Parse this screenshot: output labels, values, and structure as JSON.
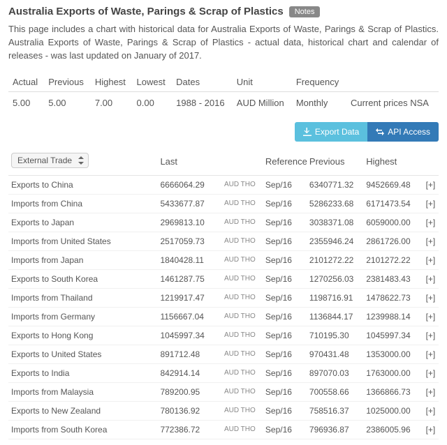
{
  "header": {
    "title": "Australia Exports of Waste, Parings & Scrap of Plastics",
    "notes_label": "Notes"
  },
  "description": "This page includes a chart with historical data for Australia Exports of Waste, Parings & Scrap of Plastics. Australia Exports of Waste, Parings & Scrap of Plastics - actual data, historical chart and calendar of releases - was last updated on January of 2017.",
  "summary": {
    "headers": [
      "Actual",
      "Previous",
      "Highest",
      "Lowest",
      "Dates",
      "Unit",
      "Frequency",
      ""
    ],
    "values": [
      "5.00",
      "5.00",
      "7.00",
      "0.00",
      "1988 - 2016",
      "AUD Million",
      "Monthly",
      "Current prices NSA"
    ]
  },
  "actions": {
    "export_label": "Export Data",
    "api_label": "API Access"
  },
  "filter": {
    "selected": "External Trade"
  },
  "data_table": {
    "headers": {
      "name": "",
      "last": "Last",
      "unit": "",
      "reference": "Reference",
      "previous": "Previous",
      "highest": "Highest",
      "expand": ""
    },
    "unit_text": "AUD THO",
    "expand_text": "[+]",
    "rows": [
      {
        "name": "Exports to China",
        "last": "6666064.29",
        "ref": "Sep/16",
        "prev": "6340771.32",
        "high": "9452669.48"
      },
      {
        "name": "Imports from China",
        "last": "5433677.87",
        "ref": "Sep/16",
        "prev": "5286233.68",
        "high": "6171473.54"
      },
      {
        "name": "Exports to Japan",
        "last": "2969813.10",
        "ref": "Sep/16",
        "prev": "3038371.08",
        "high": "6059000.00"
      },
      {
        "name": "Imports from United States",
        "last": "2517059.73",
        "ref": "Sep/16",
        "prev": "2355946.24",
        "high": "2861726.00"
      },
      {
        "name": "Imports from Japan",
        "last": "1840428.11",
        "ref": "Sep/16",
        "prev": "2101272.22",
        "high": "2101272.22"
      },
      {
        "name": "Exports to South Korea",
        "last": "1461287.75",
        "ref": "Sep/16",
        "prev": "1270256.03",
        "high": "2381483.43"
      },
      {
        "name": "Imports from Thailand",
        "last": "1219917.47",
        "ref": "Sep/16",
        "prev": "1198716.91",
        "high": "1478622.73"
      },
      {
        "name": "Imports from Germany",
        "last": "1156667.04",
        "ref": "Sep/16",
        "prev": "1136844.17",
        "high": "1239988.14"
      },
      {
        "name": "Exports to Hong Kong",
        "last": "1045997.34",
        "ref": "Sep/16",
        "prev": "710195.30",
        "high": "1045997.34"
      },
      {
        "name": "Exports to United States",
        "last": "891712.48",
        "ref": "Sep/16",
        "prev": "970431.48",
        "high": "1353000.00"
      },
      {
        "name": "Exports to India",
        "last": "842914.14",
        "ref": "Sep/16",
        "prev": "897070.03",
        "high": "1763000.00"
      },
      {
        "name": "Imports from Malaysia",
        "last": "789200.95",
        "ref": "Sep/16",
        "prev": "700558.66",
        "high": "1366866.73"
      },
      {
        "name": "Exports to New Zealand",
        "last": "780136.92",
        "ref": "Sep/16",
        "prev": "758516.37",
        "high": "1025000.00"
      },
      {
        "name": "Imports from South Korea",
        "last": "772386.72",
        "ref": "Sep/16",
        "prev": "796936.87",
        "high": "2386005.96"
      }
    ]
  }
}
